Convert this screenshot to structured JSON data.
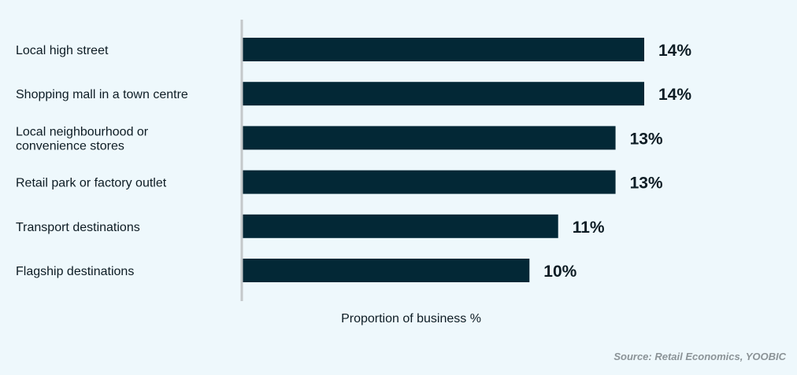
{
  "chart_data": {
    "type": "bar",
    "orientation": "horizontal",
    "categories": [
      [
        "Local high street"
      ],
      [
        "Shopping mall in a town centre"
      ],
      [
        "Local neighbourhood or",
        "convenience stores"
      ],
      [
        "Retail park or factory outlet"
      ],
      [
        "Transport destinations"
      ],
      [
        "Flagship destinations"
      ]
    ],
    "values": [
      14,
      14,
      13,
      13,
      11,
      10
    ],
    "value_labels": [
      "14%",
      "14%",
      "13%",
      "13%",
      "11%",
      "10%"
    ],
    "xlabel": "Proportion of business %",
    "ylabel": "",
    "xlim": [
      0,
      14
    ],
    "grid": false,
    "bar_color": "#032836",
    "axis_color": "#c4c8ca"
  },
  "source": "Source: Retail Economics, YOOBIC"
}
